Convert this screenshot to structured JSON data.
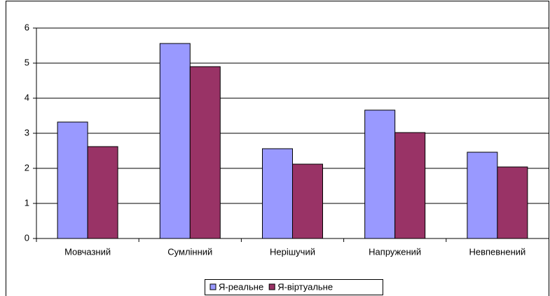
{
  "chart_data": {
    "type": "bar",
    "categories": [
      "Мовчазний",
      "Сумлінний",
      "Нерішучий",
      "Напружений",
      "Невпевнений"
    ],
    "series": [
      {
        "name": "Я-реальне",
        "color": "#9999ff",
        "values": [
          3.32,
          5.56,
          2.56,
          3.66,
          2.46
        ]
      },
      {
        "name": "Я-віртуальне",
        "color": "#993366",
        "values": [
          2.62,
          4.9,
          2.12,
          3.02,
          2.04
        ]
      }
    ],
    "ylim": [
      0,
      6
    ],
    "yticks": [
      0,
      1,
      2,
      3,
      4,
      5,
      6
    ],
    "grid": true,
    "legend": "bottom"
  }
}
